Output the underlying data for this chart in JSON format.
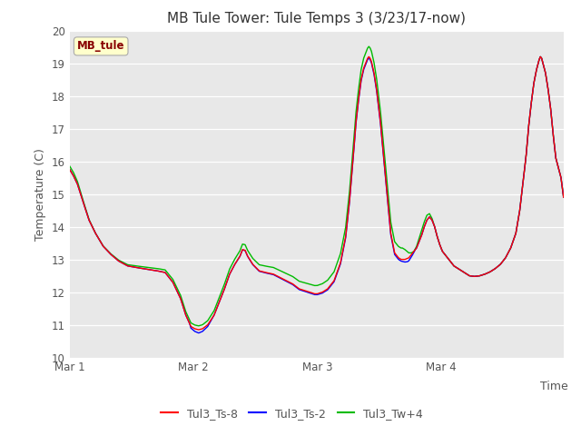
{
  "title": "MB Tule Tower: Tule Temps 3 (3/23/17-now)",
  "xlabel": "Time",
  "ylabel": "Temperature (C)",
  "ylim": [
    10.0,
    20.0
  ],
  "yticks": [
    10.0,
    11.0,
    12.0,
    13.0,
    14.0,
    15.0,
    16.0,
    17.0,
    18.0,
    19.0,
    20.0
  ],
  "bg_color": "#e8e8e8",
  "fig_color": "#ffffff",
  "line_colors": [
    "#ff0000",
    "#0000ff",
    "#00bb00"
  ],
  "line_labels": [
    "Tul3_Ts-8",
    "Tul3_Ts-2",
    "Tul3_Tw+4"
  ],
  "station_label": "MB_tule",
  "station_label_color": "#880000",
  "station_box_color": "#ffffcc",
  "title_fontsize": 11,
  "axis_label_fontsize": 9,
  "tick_fontsize": 8.5,
  "legend_fontsize": 9,
  "x_tick_labels": [
    "Mar 1",
    "Mar 2",
    "Mar 3",
    "Mar 4"
  ],
  "x_tick_positions": [
    0,
    96,
    192,
    288
  ],
  "total_points": 384,
  "waypoints_base": [
    [
      0,
      15.75
    ],
    [
      3,
      15.55
    ],
    [
      6,
      15.3
    ],
    [
      10,
      14.8
    ],
    [
      15,
      14.2
    ],
    [
      20,
      13.8
    ],
    [
      26,
      13.4
    ],
    [
      32,
      13.15
    ],
    [
      38,
      12.95
    ],
    [
      45,
      12.8
    ],
    [
      52,
      12.75
    ],
    [
      60,
      12.7
    ],
    [
      68,
      12.65
    ],
    [
      74,
      12.6
    ],
    [
      80,
      12.3
    ],
    [
      86,
      11.8
    ],
    [
      90,
      11.3
    ],
    [
      94,
      10.95
    ],
    [
      97,
      10.88
    ],
    [
      100,
      10.85
    ],
    [
      103,
      10.88
    ],
    [
      107,
      11.0
    ],
    [
      112,
      11.3
    ],
    [
      116,
      11.7
    ],
    [
      120,
      12.1
    ],
    [
      124,
      12.55
    ],
    [
      128,
      12.85
    ],
    [
      132,
      13.1
    ],
    [
      134,
      13.3
    ],
    [
      136,
      13.28
    ],
    [
      138,
      13.1
    ],
    [
      142,
      12.85
    ],
    [
      147,
      12.65
    ],
    [
      152,
      12.6
    ],
    [
      158,
      12.55
    ],
    [
      163,
      12.45
    ],
    [
      168,
      12.35
    ],
    [
      173,
      12.25
    ],
    [
      178,
      12.1
    ],
    [
      182,
      12.05
    ],
    [
      186,
      12.0
    ],
    [
      190,
      11.95
    ],
    [
      192,
      11.95
    ],
    [
      196,
      12.0
    ],
    [
      200,
      12.1
    ],
    [
      205,
      12.35
    ],
    [
      210,
      12.9
    ],
    [
      214,
      13.7
    ],
    [
      217,
      14.8
    ],
    [
      220,
      16.2
    ],
    [
      222,
      17.2
    ],
    [
      224,
      17.9
    ],
    [
      226,
      18.5
    ],
    [
      228,
      18.85
    ],
    [
      230,
      19.05
    ],
    [
      231,
      19.15
    ],
    [
      232,
      19.2
    ],
    [
      233,
      19.15
    ],
    [
      234,
      19.05
    ],
    [
      236,
      18.7
    ],
    [
      238,
      18.2
    ],
    [
      241,
      17.2
    ],
    [
      245,
      15.5
    ],
    [
      249,
      13.8
    ],
    [
      252,
      13.2
    ],
    [
      255,
      13.05
    ],
    [
      257,
      13.0
    ],
    [
      260,
      13.0
    ],
    [
      263,
      13.05
    ],
    [
      266,
      13.2
    ],
    [
      269,
      13.35
    ],
    [
      271,
      13.55
    ],
    [
      273,
      13.75
    ],
    [
      275,
      14.0
    ],
    [
      277,
      14.2
    ],
    [
      279,
      14.3
    ],
    [
      281,
      14.2
    ],
    [
      283,
      14.0
    ],
    [
      285,
      13.7
    ],
    [
      287,
      13.45
    ],
    [
      289,
      13.25
    ],
    [
      292,
      13.1
    ],
    [
      295,
      12.95
    ],
    [
      298,
      12.8
    ],
    [
      302,
      12.7
    ],
    [
      306,
      12.6
    ],
    [
      310,
      12.5
    ],
    [
      314,
      12.48
    ],
    [
      318,
      12.5
    ],
    [
      322,
      12.55
    ],
    [
      326,
      12.62
    ],
    [
      330,
      12.72
    ],
    [
      334,
      12.85
    ],
    [
      338,
      13.05
    ],
    [
      342,
      13.35
    ],
    [
      346,
      13.8
    ],
    [
      349,
      14.5
    ],
    [
      352,
      15.5
    ],
    [
      354,
      16.2
    ],
    [
      356,
      17.1
    ],
    [
      358,
      17.8
    ],
    [
      360,
      18.4
    ],
    [
      362,
      18.8
    ],
    [
      364,
      19.1
    ],
    [
      365,
      19.2
    ],
    [
      366,
      19.15
    ],
    [
      367,
      19.0
    ],
    [
      369,
      18.7
    ],
    [
      371,
      18.2
    ],
    [
      373,
      17.6
    ],
    [
      375,
      16.8
    ],
    [
      377,
      16.1
    ],
    [
      379,
      15.8
    ],
    [
      381,
      15.5
    ],
    [
      383,
      14.9
    ]
  ],
  "tw4_extra_waypoints": [
    [
      0,
      0.1
    ],
    [
      3,
      0.1
    ],
    [
      6,
      0.08
    ],
    [
      10,
      0.05
    ],
    [
      15,
      0.02
    ],
    [
      20,
      0.0
    ],
    [
      258,
      0.35
    ],
    [
      260,
      0.3
    ],
    [
      263,
      0.15
    ],
    [
      265,
      0.05
    ],
    [
      267,
      0.0
    ],
    [
      271,
      0.1
    ],
    [
      273,
      0.15
    ],
    [
      275,
      0.15
    ],
    [
      277,
      0.15
    ],
    [
      279,
      0.1
    ],
    [
      281,
      0.05
    ],
    [
      283,
      0.0
    ]
  ],
  "ts2_extra_waypoints": [
    [
      94,
      -0.05
    ],
    [
      97,
      -0.08
    ],
    [
      100,
      -0.1
    ],
    [
      103,
      -0.08
    ],
    [
      107,
      -0.05
    ],
    [
      112,
      0.0
    ],
    [
      257,
      -0.05
    ],
    [
      260,
      -0.08
    ],
    [
      262,
      -0.1
    ],
    [
      264,
      -0.08
    ],
    [
      266,
      -0.05
    ],
    [
      268,
      0.0
    ]
  ]
}
